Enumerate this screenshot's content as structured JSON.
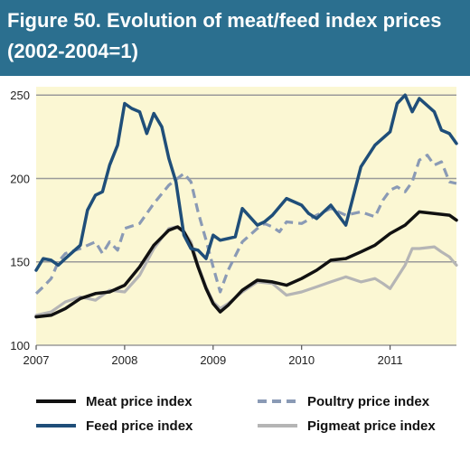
{
  "title_line1": "Figure 50. Evolution of meat/feed index prices",
  "title_line2": "(2002-2004=1)",
  "colors": {
    "title_background": "#2b6f8f",
    "plot_background": "#fbf7d3",
    "gridline": "#9a9a9a",
    "meat": "#111111",
    "feed": "#1f4e79",
    "poultry": "#8a9ab5",
    "pigmeat": "#b5b5b5"
  },
  "chart_data": {
    "type": "line",
    "x_tick_labels": [
      "2007",
      "2008",
      "2009",
      "2010",
      "2011"
    ],
    "y_tick_labels": [
      "100",
      "150",
      "200",
      "250"
    ],
    "xlim": [
      2007.0,
      2011.75
    ],
    "ylim": [
      100,
      255
    ],
    "grid": "horizontal",
    "legend_position": "bottom",
    "series": [
      {
        "key": "meat",
        "name": "Meat price index",
        "style": "solid",
        "x": [
          2007.0,
          2007.17,
          2007.33,
          2007.5,
          2007.67,
          2007.83,
          2008.0,
          2008.17,
          2008.33,
          2008.5,
          2008.6,
          2008.67,
          2008.75,
          2008.83,
          2008.92,
          2009.0,
          2009.08,
          2009.17,
          2009.33,
          2009.5,
          2009.67,
          2009.83,
          2010.0,
          2010.17,
          2010.33,
          2010.5,
          2010.67,
          2010.83,
          2011.0,
          2011.17,
          2011.33,
          2011.5,
          2011.67,
          2011.75
        ],
        "y": [
          117,
          118,
          122,
          128,
          131,
          132,
          136,
          147,
          160,
          169,
          171,
          168,
          160,
          147,
          134,
          125,
          120,
          124,
          133,
          139,
          138,
          136,
          140,
          145,
          151,
          152,
          156,
          160,
          167,
          172,
          180,
          179,
          178,
          175
        ]
      },
      {
        "key": "feed",
        "name": "Feed price index",
        "style": "solid",
        "x": [
          2007.0,
          2007.08,
          2007.17,
          2007.25,
          2007.33,
          2007.5,
          2007.58,
          2007.67,
          2007.75,
          2007.83,
          2007.92,
          2008.0,
          2008.08,
          2008.17,
          2008.25,
          2008.33,
          2008.42,
          2008.5,
          2008.58,
          2008.67,
          2008.75,
          2008.83,
          2008.92,
          2009.0,
          2009.08,
          2009.25,
          2009.33,
          2009.5,
          2009.58,
          2009.67,
          2009.83,
          2010.0,
          2010.08,
          2010.17,
          2010.33,
          2010.5,
          2010.67,
          2010.83,
          2011.0,
          2011.08,
          2011.17,
          2011.25,
          2011.33,
          2011.5,
          2011.58,
          2011.67,
          2011.75
        ],
        "y": [
          145,
          152,
          151,
          148,
          152,
          160,
          181,
          190,
          192,
          208,
          220,
          245,
          242,
          240,
          227,
          239,
          231,
          212,
          198,
          166,
          158,
          157,
          152,
          166,
          163,
          165,
          182,
          172,
          174,
          178,
          188,
          184,
          179,
          176,
          184,
          172,
          207,
          220,
          228,
          245,
          250,
          240,
          248,
          240,
          229,
          227,
          221
        ]
      },
      {
        "key": "poultry",
        "name": "Poultry price index",
        "style": "dashed",
        "x": [
          2007.0,
          2007.08,
          2007.17,
          2007.25,
          2007.33,
          2007.5,
          2007.67,
          2007.75,
          2007.83,
          2007.92,
          2008.0,
          2008.17,
          2008.33,
          2008.5,
          2008.67,
          2008.75,
          2008.83,
          2008.92,
          2009.0,
          2009.08,
          2009.17,
          2009.33,
          2009.5,
          2009.58,
          2009.67,
          2009.75,
          2009.83,
          2010.0,
          2010.17,
          2010.33,
          2010.5,
          2010.67,
          2010.83,
          2010.92,
          2011.0,
          2011.08,
          2011.17,
          2011.25,
          2011.33,
          2011.42,
          2011.5,
          2011.58,
          2011.67,
          2011.75
        ],
        "y": [
          131,
          135,
          140,
          150,
          155,
          158,
          162,
          155,
          162,
          157,
          170,
          173,
          185,
          196,
          203,
          198,
          180,
          163,
          147,
          132,
          145,
          162,
          170,
          173,
          171,
          168,
          174,
          173,
          178,
          182,
          178,
          180,
          177,
          187,
          193,
          195,
          192,
          198,
          211,
          214,
          208,
          210,
          198,
          197
        ]
      },
      {
        "key": "pigmeat",
        "name": "Pigmeat price index",
        "style": "solid",
        "x": [
          2007.0,
          2007.17,
          2007.33,
          2007.5,
          2007.67,
          2007.83,
          2008.0,
          2008.17,
          2008.33,
          2008.5,
          2008.58,
          2008.67,
          2008.75,
          2008.83,
          2008.92,
          2009.0,
          2009.08,
          2009.17,
          2009.33,
          2009.5,
          2009.67,
          2009.83,
          2010.0,
          2010.17,
          2010.33,
          2010.5,
          2010.67,
          2010.83,
          2010.92,
          2011.0,
          2011.17,
          2011.25,
          2011.33,
          2011.5,
          2011.58,
          2011.67,
          2011.75
        ],
        "y": [
          118,
          120,
          126,
          129,
          127,
          133,
          132,
          142,
          158,
          170,
          171,
          168,
          162,
          148,
          135,
          126,
          122,
          125,
          132,
          138,
          137,
          130,
          132,
          135,
          138,
          141,
          138,
          140,
          137,
          134,
          148,
          158,
          158,
          159,
          156,
          153,
          148
        ]
      }
    ]
  }
}
